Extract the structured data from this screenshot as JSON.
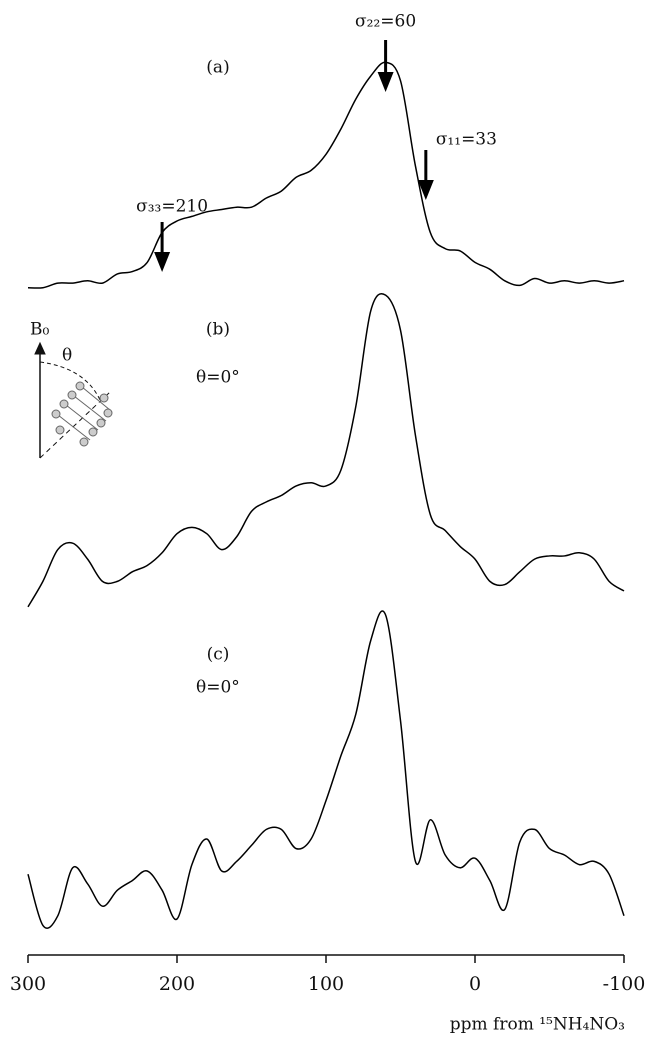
{
  "chart_data": {
    "type": "line",
    "x": [
      300,
      290,
      280,
      270,
      260,
      250,
      240,
      230,
      220,
      210,
      200,
      190,
      180,
      170,
      160,
      150,
      140,
      130,
      120,
      110,
      100,
      90,
      80,
      70,
      60,
      50,
      40,
      30,
      20,
      10,
      0,
      -10,
      -20,
      -30,
      -40,
      -50,
      -60,
      -70,
      -80,
      -90,
      -100
    ],
    "series": [
      {
        "name": "(a)",
        "color": "#000000",
        "values": [
          1,
          1,
          3,
          3,
          4,
          3,
          7,
          8,
          12,
          25,
          30,
          32,
          34,
          35,
          36,
          36,
          40,
          43,
          49,
          52,
          59,
          70,
          83,
          93,
          99,
          91,
          54,
          25,
          18,
          17,
          12,
          9,
          4,
          2,
          5,
          3,
          4,
          3,
          4,
          3,
          4
        ]
      },
      {
        "name": "(b)",
        "color": "#000000",
        "values": [
          1,
          9,
          19,
          21,
          16,
          9,
          9,
          12,
          14,
          18,
          24,
          26,
          24,
          19,
          23,
          31,
          34,
          36,
          39,
          40,
          39,
          44,
          64,
          94,
          99,
          88,
          55,
          30,
          25,
          20,
          16,
          9,
          8,
          12,
          16,
          17,
          17,
          18,
          16,
          9,
          6
        ]
      },
      {
        "name": "(c)",
        "color": "#000000",
        "values": [
          19,
          3,
          6,
          21,
          16,
          9,
          14,
          17,
          20,
          14,
          5,
          22,
          30,
          20,
          23,
          28,
          33,
          33,
          27,
          30,
          42,
          56,
          69,
          92,
          100,
          67,
          23,
          36,
          25,
          21,
          24,
          17,
          8,
          29,
          33,
          27,
          25,
          22,
          23,
          19,
          6
        ]
      }
    ],
    "xlim": [
      300,
      -100
    ],
    "xticks": [
      300,
      200,
      100,
      0,
      -100
    ],
    "xlabel": "ppm from ¹⁵NH₄NO₃",
    "ylim": [
      0,
      100
    ],
    "annotations": [
      {
        "text": "σ₂₂=60",
        "x": 60
      },
      {
        "text": "σ₁₁=33",
        "x": 33
      },
      {
        "text": "σ₃₃=210",
        "x": 210
      }
    ],
    "conditions": [
      "θ=0°",
      "θ=0°"
    ],
    "inset_labels": [
      "B₀",
      "θ"
    ]
  }
}
